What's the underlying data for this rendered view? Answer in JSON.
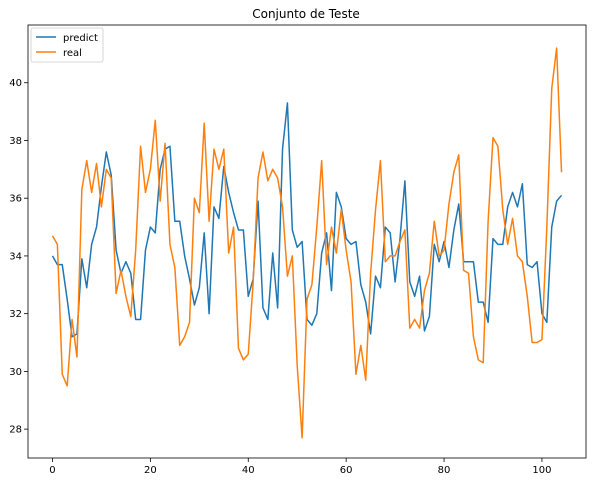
{
  "chart_data": {
    "type": "line",
    "title": "Conjunto de Teste",
    "xlabel": "",
    "ylabel": "",
    "xlim": [
      -5,
      109
    ],
    "ylim": [
      27.0,
      42.0
    ],
    "x_ticks": [
      0,
      20,
      40,
      60,
      80,
      100
    ],
    "y_ticks": [
      28,
      30,
      32,
      34,
      36,
      38,
      40
    ],
    "grid": false,
    "legend_position": "top-left",
    "series": [
      {
        "name": "predict",
        "color": "#1f77b4",
        "values": [
          34.0,
          33.7,
          33.7,
          32.5,
          31.2,
          31.3,
          33.9,
          32.9,
          34.4,
          35.0,
          36.4,
          37.6,
          36.8,
          34.2,
          33.4,
          33.8,
          33.4,
          31.8,
          31.8,
          34.2,
          35.0,
          34.8,
          37.0,
          37.7,
          37.8,
          35.2,
          35.2,
          34.0,
          33.2,
          32.3,
          32.9,
          34.8,
          32.0,
          35.7,
          35.3,
          37.1,
          36.2,
          35.5,
          34.9,
          34.9,
          32.6,
          33.2,
          35.9,
          32.2,
          31.8,
          34.1,
          32.2,
          37.7,
          39.3,
          34.9,
          34.3,
          34.5,
          31.8,
          31.6,
          32.0,
          34.1,
          34.8,
          32.8,
          36.2,
          35.7,
          34.6,
          34.4,
          34.5,
          33.0,
          32.4,
          31.3,
          33.3,
          32.9,
          35.0,
          34.8,
          33.1,
          34.6,
          36.6,
          33.1,
          32.6,
          33.3,
          31.4,
          31.9,
          34.4,
          33.8,
          34.5,
          33.6,
          34.9,
          35.8,
          33.8,
          33.8,
          33.8,
          32.4,
          32.4,
          31.7,
          34.6,
          34.4,
          34.4,
          35.7,
          36.2,
          35.7,
          36.5,
          33.7,
          33.6,
          33.8,
          32.0,
          31.7,
          35.0,
          35.9,
          36.1
        ]
      },
      {
        "name": "real",
        "color": "#ff7f0e",
        "values": [
          34.7,
          34.4,
          29.9,
          29.5,
          31.8,
          30.5,
          36.3,
          37.3,
          36.2,
          37.2,
          35.7,
          37.0,
          36.7,
          32.7,
          33.5,
          32.6,
          31.9,
          34.2,
          37.8,
          36.2,
          37.0,
          38.7,
          35.9,
          37.9,
          34.4,
          33.6,
          30.9,
          31.2,
          31.7,
          36.0,
          35.5,
          38.6,
          35.2,
          37.7,
          37.0,
          37.7,
          34.1,
          35.0,
          30.8,
          30.4,
          30.6,
          33.1,
          36.7,
          37.6,
          36.6,
          37.0,
          36.7,
          35.7,
          33.3,
          34.0,
          30.2,
          27.7,
          32.5,
          33.0,
          35.0,
          37.3,
          33.7,
          35.0,
          34.1,
          35.6,
          34.2,
          33.1,
          29.9,
          30.9,
          29.7,
          33.4,
          35.6,
          37.3,
          33.8,
          34.0,
          34.0,
          34.5,
          34.9,
          31.5,
          31.8,
          31.5,
          32.8,
          33.4,
          35.2,
          34.0,
          34.2,
          35.8,
          36.9,
          37.5,
          33.5,
          33.4,
          31.2,
          30.4,
          30.3,
          35.2,
          38.1,
          37.8,
          35.6,
          34.4,
          35.3,
          34.0,
          33.8,
          32.6,
          31.0,
          31.0,
          31.1,
          35.0,
          39.8,
          41.2,
          36.9
        ]
      }
    ]
  }
}
